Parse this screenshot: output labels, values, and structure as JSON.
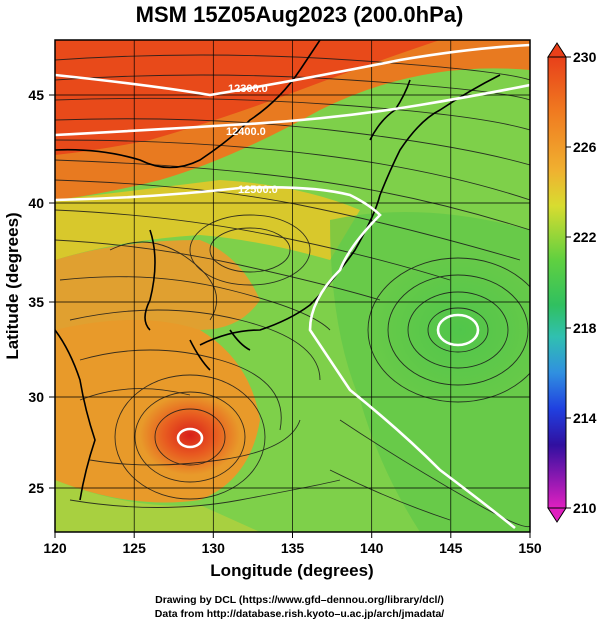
{
  "title": "MSM 15Z05Aug2023 (200.0hPa)",
  "x_axis": {
    "label": "Longitude (degrees)",
    "ticks": [
      "120",
      "125",
      "130",
      "135",
      "140",
      "145",
      "150"
    ],
    "range": [
      120,
      150
    ]
  },
  "y_axis": {
    "label": "Latitude  (degrees)",
    "ticks": [
      "25",
      "30",
      "35",
      "40",
      "45"
    ],
    "range": [
      22.5,
      47.5
    ]
  },
  "colorbar": {
    "ticks": [
      "230",
      "226",
      "222",
      "218",
      "214",
      "210"
    ],
    "range": [
      210,
      230
    ]
  },
  "contours": [
    {
      "label": "12300.0"
    },
    {
      "label": "12400.0"
    },
    {
      "label": "12500.0"
    }
  ],
  "credits": {
    "line1": "Drawing by DCL (https://www.gfd–dennou.org/library/dcl/)",
    "line2": "Data from http://database.rish.kyoto–u.ac.jp/arch/jmadata/"
  },
  "colors": {
    "high": "#e8401a",
    "mid": "#e0d020",
    "low_mid": "#30c040",
    "contour": "#ffffff"
  }
}
